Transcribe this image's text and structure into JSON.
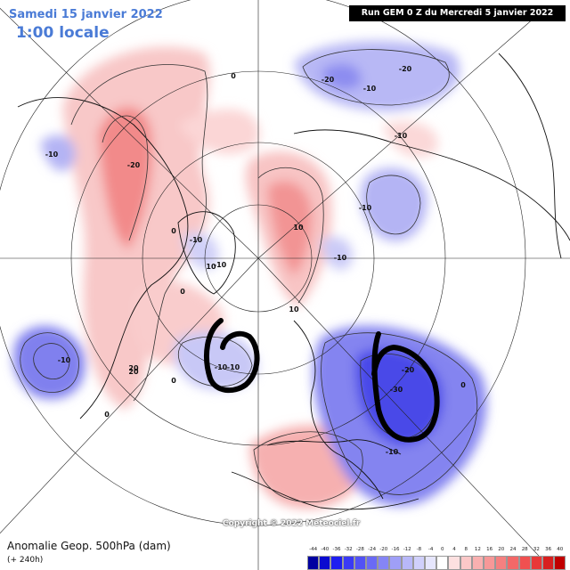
{
  "header": {
    "date": "Samedi 15 janvier 2022",
    "time": "1:00 locale",
    "run": "Run GEM 0 Z du Mercredi 5 janvier 2022"
  },
  "footer": {
    "copyright": "Copyright © 2022 Meteociel.fr",
    "field": "Anomalie Geop. 500hPa (dam)",
    "lead": "(+ 240h)"
  },
  "legend": {
    "unit": "dam",
    "labels": [
      "-44",
      "-40",
      "-36",
      "-32",
      "-28",
      "-24",
      "-20",
      "-16",
      "-12",
      "-8",
      "-4",
      "0",
      "4",
      "8",
      "12",
      "16",
      "20",
      "24",
      "28",
      "32",
      "36",
      "40"
    ],
    "colors": [
      "#0000a0",
      "#0a0ad0",
      "#1e1ef0",
      "#3a3af5",
      "#5252f5",
      "#6a6af5",
      "#8585f5",
      "#9f9ff7",
      "#b8b8f9",
      "#d0d0fb",
      "#e6e6fd",
      "#ffffff",
      "#fde0e0",
      "#fbc8c8",
      "#f9b0b0",
      "#f79898",
      "#f58080",
      "#f36868",
      "#f05050",
      "#e83838",
      "#d82020",
      "#c00000"
    ]
  },
  "contour_labels": [
    "0",
    "-10",
    "-20",
    "20",
    "10",
    "-10",
    "-20",
    "-10",
    "0",
    "-10",
    "10",
    "-10",
    "-10",
    "0",
    "-10",
    "20",
    "-10",
    "-20",
    "-30",
    "-10",
    "-20",
    "-10",
    "10",
    "0",
    "-10",
    "0",
    "0"
  ],
  "colors": {
    "title": "#4a7bd6",
    "positive": "#f07070",
    "negative": "#6a6af0",
    "annotation": "#000000"
  }
}
